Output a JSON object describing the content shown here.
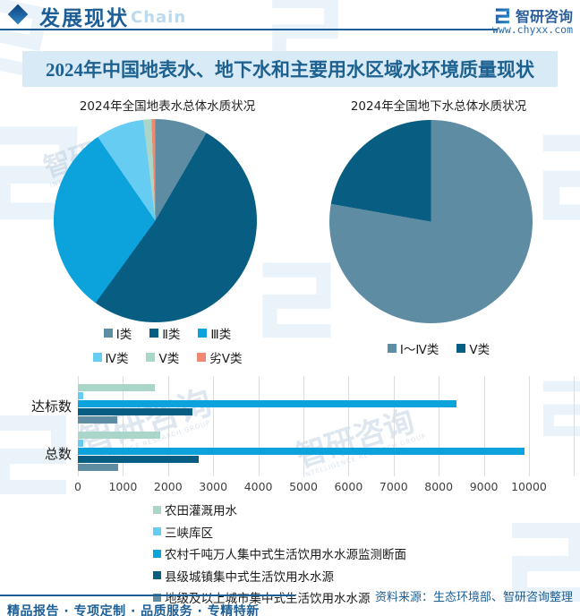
{
  "header": {
    "section_title": "发展现状",
    "chain_watermark": "Chain",
    "brand_name": "智研咨询",
    "website": "www.chyxx.com"
  },
  "title_bar": {
    "text": "2024年中国地表水、地下水和主要用水区域水环境质量现状"
  },
  "watermark": {
    "text": "智研咨询",
    "subtext": "INTELLIGENCE RESEARCH GROUP"
  },
  "chart_data": [
    {
      "type": "pie",
      "title": "2024年全国地表水总体水质状况",
      "legend_position": "bottom",
      "slices": [
        {
          "label": "Ⅰ类",
          "value": 8.4,
          "color": "#5E8CA3"
        },
        {
          "label": "Ⅱ类",
          "value": 51.6,
          "color": "#085E82"
        },
        {
          "label": "Ⅲ类",
          "value": 30.4,
          "color": "#0CA2DC"
        },
        {
          "label": "Ⅳ类",
          "value": 7.7,
          "color": "#66CCF2"
        },
        {
          "label": "Ⅴ类",
          "value": 1.3,
          "color": "#A9D6C8"
        },
        {
          "label": "劣Ⅴ类",
          "value": 0.6,
          "color": "#EF8A72"
        }
      ]
    },
    {
      "type": "pie",
      "title": "2024年全国地下水总体水质状况",
      "legend_position": "bottom",
      "slices": [
        {
          "label": "Ⅰ～Ⅳ类",
          "value": 77.8,
          "color": "#5E8CA3"
        },
        {
          "label": "Ⅴ类",
          "value": 22.2,
          "color": "#085E82"
        }
      ]
    },
    {
      "type": "bar",
      "orientation": "horizontal",
      "categories": [
        "达标数",
        "总数"
      ],
      "series": [
        {
          "name": "农田灌溉用水",
          "color": "#A9D6C8",
          "values": [
            1700,
            1820
          ]
        },
        {
          "name": "三峡库区",
          "color": "#66CCF2",
          "values": [
            110,
            110
          ]
        },
        {
          "name": "农村千吨万人集中式生活饮用水水源监测断面",
          "color": "#0CA2DC",
          "values": [
            8400,
            9890
          ]
        },
        {
          "name": "县级城镇集中式生活饮用水水源",
          "color": "#085E82",
          "values": [
            2530,
            2680
          ]
        },
        {
          "name": "地级及以上城市集中式生活饮用水水源",
          "color": "#5E8CA3",
          "values": [
            870,
            900
          ]
        }
      ],
      "x_ticks": [
        0,
        1000,
        2000,
        3000,
        4000,
        5000,
        6000,
        7000,
        8000,
        9000,
        10000
      ],
      "xlim": [
        0,
        10000
      ],
      "grid": true,
      "legend_position": "bottom"
    }
  ],
  "footer": {
    "slogan": "精品报告 · 专项定制 · 品质服务 · 专精特新",
    "source": "资料来源：生态环境部、智研咨询整理"
  }
}
